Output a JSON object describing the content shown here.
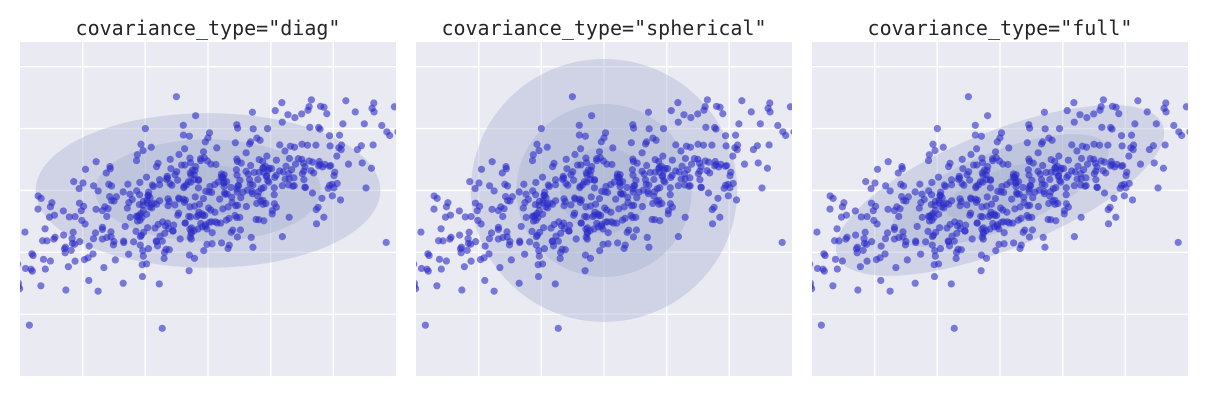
{
  "figure": {
    "titles": [
      "covariance_type=\"diag\"",
      "covariance_type=\"spherical\"",
      "covariance_type=\"full\""
    ]
  },
  "colors": {
    "axes_background": "#EAEAF2",
    "grid": "#FFFFFF",
    "points": "#2B2BC8",
    "ellipse": "#A3AECF"
  },
  "chart_data": [
    {
      "type": "scatter",
      "title": "covariance_type=\"diag\"",
      "xlabel": "",
      "ylabel": "",
      "xlim": [
        -3,
        3
      ],
      "ylim": [
        -3,
        2.4
      ],
      "grid": true,
      "ticklabels": false,
      "gaussian": {
        "mean": [
          0,
          0
        ],
        "std": [
          1.6,
          0.5
        ],
        "rotation_deg": 18,
        "n": 500,
        "seed": 7
      },
      "outliers": [
        [
          2.2,
          1.45
        ],
        [
          2.35,
          1.27
        ],
        [
          2.65,
          1.27
        ],
        [
          0.95,
          1.0
        ],
        [
          -2.45,
          -0.4
        ],
        [
          -2.6,
          -0.62
        ],
        [
          -1.0,
          1.0
        ],
        [
          0.0,
          0.85
        ],
        [
          -1.05,
          -1.2
        ],
        [
          -0.7,
          -1.1
        ]
      ],
      "ellipses": [
        {
          "center": [
            0,
            0
          ],
          "width": 5.5,
          "height": 2.5,
          "angle_deg": 0
        },
        {
          "center": [
            0,
            0
          ],
          "width": 3.6,
          "height": 1.65,
          "angle_deg": 0
        },
        {
          "center": [
            0,
            0
          ],
          "width": 1.8,
          "height": 0.82,
          "angle_deg": 0
        }
      ]
    },
    {
      "type": "scatter",
      "title": "covariance_type=\"spherical\"",
      "xlabel": "",
      "ylabel": "",
      "xlim": [
        -3,
        3
      ],
      "ylim": [
        -3,
        2.4
      ],
      "grid": true,
      "ticklabels": false,
      "gaussian": {
        "mean": [
          0,
          0
        ],
        "std": [
          1.6,
          0.5
        ],
        "rotation_deg": 18,
        "n": 500,
        "seed": 7
      },
      "outliers": [
        [
          2.2,
          1.45
        ],
        [
          2.35,
          1.27
        ],
        [
          2.65,
          1.27
        ],
        [
          0.95,
          1.0
        ],
        [
          -2.45,
          -0.4
        ],
        [
          -2.6,
          -0.62
        ],
        [
          -1.0,
          1.0
        ],
        [
          0.0,
          0.85
        ],
        [
          -1.05,
          -1.2
        ],
        [
          -0.7,
          -1.1
        ]
      ],
      "ellipses": [
        {
          "center": [
            0,
            0
          ],
          "width": 4.25,
          "height": 4.25,
          "angle_deg": 0
        },
        {
          "center": [
            0,
            0
          ],
          "width": 2.8,
          "height": 2.8,
          "angle_deg": 0
        },
        {
          "center": [
            0,
            0
          ],
          "width": 1.4,
          "height": 1.4,
          "angle_deg": 0
        }
      ]
    },
    {
      "type": "scatter",
      "title": "covariance_type=\"full\"",
      "xlabel": "",
      "ylabel": "",
      "xlim": [
        -3,
        3
      ],
      "ylim": [
        -3,
        2.4
      ],
      "grid": true,
      "ticklabels": false,
      "gaussian": {
        "mean": [
          0,
          0
        ],
        "std": [
          1.6,
          0.5
        ],
        "rotation_deg": 18,
        "n": 500,
        "seed": 7
      },
      "outliers": [
        [
          2.2,
          1.45
        ],
        [
          2.35,
          1.27
        ],
        [
          2.65,
          1.27
        ],
        [
          0.95,
          1.0
        ],
        [
          -2.45,
          -0.4
        ],
        [
          -2.6,
          -0.62
        ],
        [
          -1.0,
          1.0
        ],
        [
          0.0,
          0.85
        ],
        [
          -1.05,
          -1.2
        ],
        [
          -0.7,
          -1.1
        ]
      ],
      "ellipses": [
        {
          "center": [
            0,
            0
          ],
          "width": 5.6,
          "height": 1.9,
          "angle_deg": 22
        },
        {
          "center": [
            0,
            0
          ],
          "width": 3.7,
          "height": 1.25,
          "angle_deg": 22
        },
        {
          "center": [
            0,
            0
          ],
          "width": 1.85,
          "height": 0.62,
          "angle_deg": 22
        }
      ]
    }
  ]
}
